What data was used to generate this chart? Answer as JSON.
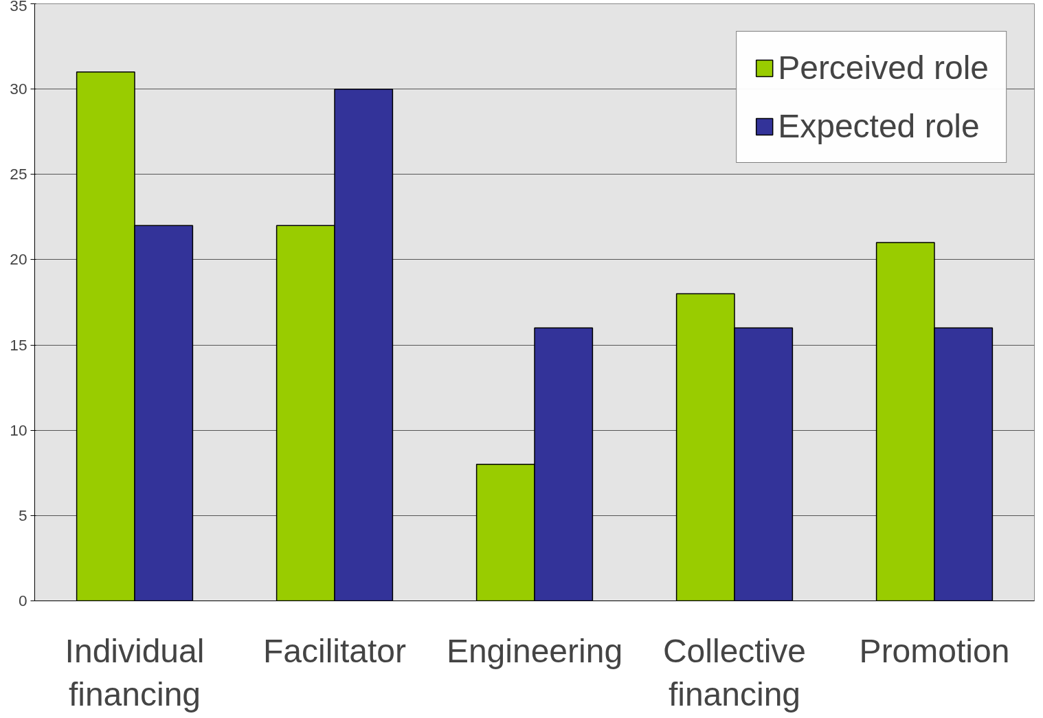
{
  "chart_data": {
    "type": "bar",
    "categories": [
      "Individual financing",
      "Facilitator",
      "Engineering",
      "Collective financing",
      "Promotion"
    ],
    "series": [
      {
        "name": "Perceived role",
        "color": "#99cc00",
        "values": [
          31,
          22,
          8,
          18,
          21
        ]
      },
      {
        "name": "Expected role",
        "color": "#333399",
        "values": [
          22,
          30,
          16,
          16,
          16
        ]
      }
    ],
    "ylim": [
      0,
      35
    ],
    "yticks": [
      0,
      5,
      10,
      15,
      20,
      25,
      30,
      35
    ],
    "grid": "y",
    "legend": "top right"
  }
}
